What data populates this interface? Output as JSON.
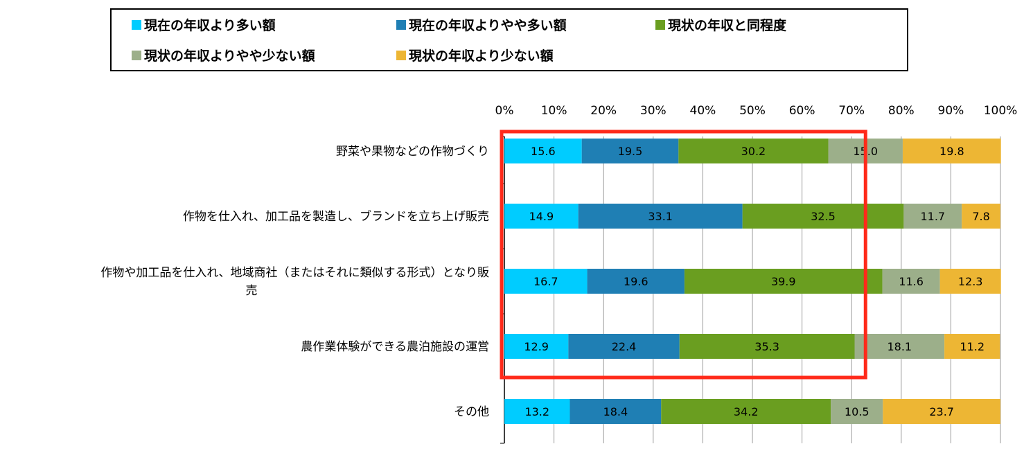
{
  "chart_data": {
    "type": "bar",
    "orientation": "horizontal",
    "stacked": true,
    "title": "",
    "xlabel": "",
    "ylabel": "",
    "xlim": [
      0,
      100
    ],
    "ticks": [
      "0%",
      "10%",
      "20%",
      "30%",
      "40%",
      "50%",
      "60%",
      "70%",
      "80%",
      "90%",
      "100%"
    ],
    "grid": true,
    "legend_position": "top",
    "categories": [
      [
        "野菜や果物などの作物づくり"
      ],
      [
        "作物を仕入れ、加工品を製造し、ブランドを立ち上げ販売"
      ],
      [
        "作物や加工品を仕入れ、地域商社（またはそれに類似する形式）となり販",
        "売"
      ],
      [
        "農作業体験ができる農泊施設の運営"
      ],
      [
        "その他"
      ]
    ],
    "series": [
      {
        "name": "現在の年収より多い額",
        "color": "#00CCFF",
        "values": [
          15.6,
          14.9,
          16.7,
          12.9,
          13.2
        ]
      },
      {
        "name": "現在の年収よりやや多い額",
        "color": "#1F7FB4",
        "values": [
          19.5,
          33.1,
          19.6,
          22.4,
          18.4
        ]
      },
      {
        "name": "現状の年収と同程度",
        "color": "#6A9E20",
        "values": [
          30.2,
          32.5,
          39.9,
          35.3,
          34.2
        ]
      },
      {
        "name": "現状の年収よりやや少ない額",
        "color": "#9CAF8A",
        "values": [
          15.0,
          11.7,
          11.6,
          18.1,
          10.5
        ]
      },
      {
        "name": "現状の年収より少ない額",
        "color": "#EDB634",
        "values": [
          19.8,
          7.8,
          12.3,
          11.2,
          23.7
        ]
      }
    ],
    "segment_labels": [
      [
        "15.6",
        "19.5",
        "30.2",
        "15.0",
        "19.8"
      ],
      [
        "14.9",
        "33.1",
        "32.5",
        "11.7",
        "7.8"
      ],
      [
        "16.7",
        "19.6",
        "39.9",
        "11.6",
        "12.3"
      ],
      [
        "12.9",
        "22.4",
        "35.3",
        "18.1",
        "11.2"
      ],
      [
        "13.2",
        "18.4",
        "34.2",
        "10.5",
        "23.7"
      ]
    ],
    "annotations": [
      {
        "type": "highlight-rectangle",
        "color": "#FF2A1A",
        "covers_categories": [
          0,
          1,
          2,
          3
        ],
        "x_range": [
          0,
          72.8
        ]
      }
    ]
  }
}
